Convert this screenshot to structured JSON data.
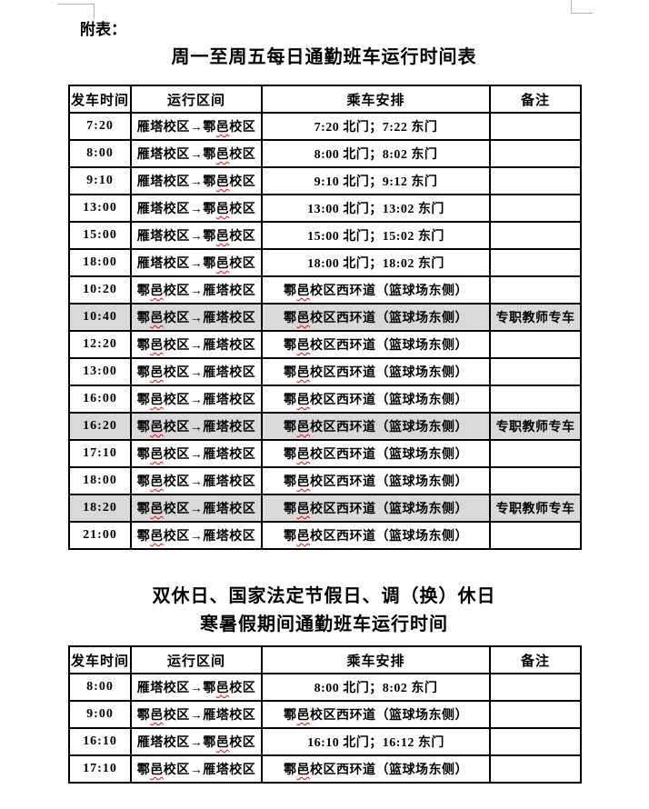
{
  "page": {
    "appendix_label": "附表："
  },
  "table1": {
    "title": "周一至周五每日通勤班车运行时间表",
    "headers": [
      "发车时间",
      "运行区间",
      "乘车安排",
      "备注"
    ],
    "rows": [
      {
        "time": "7:20",
        "route": "雁塔校区→鄠邑校区",
        "boarding": "7:20 北门；7:22 东门",
        "note": "",
        "shaded": false
      },
      {
        "time": "8:00",
        "route": "雁塔校区→鄠邑校区",
        "boarding": "8:00 北门；8:02 东门",
        "note": "",
        "shaded": false
      },
      {
        "time": "9:10",
        "route": "雁塔校区→鄠邑校区",
        "boarding": "9:10 北门；9:12 东门",
        "note": "",
        "shaded": false
      },
      {
        "time": "13:00",
        "route": "雁塔校区→鄠邑校区",
        "boarding": "13:00 北门；13:02 东门",
        "note": "",
        "shaded": false
      },
      {
        "time": "15:00",
        "route": "雁塔校区→鄠邑校区",
        "boarding": "15:00 北门；15:02 东门",
        "note": "",
        "shaded": false
      },
      {
        "time": "18:00",
        "route": "雁塔校区→鄠邑校区",
        "boarding": "18:00 北门；18:02 东门",
        "note": "",
        "shaded": false
      },
      {
        "time": "10:20",
        "route": "鄠邑校区→雁塔校区",
        "boarding": "鄠邑校区西环道（篮球场东侧）",
        "note": "",
        "shaded": false
      },
      {
        "time": "10:40",
        "route": "鄠邑校区→雁塔校区",
        "boarding": "鄠邑校区西环道（篮球场东侧）",
        "note": "专职教师专车",
        "shaded": true
      },
      {
        "time": "12:20",
        "route": "鄠邑校区→雁塔校区",
        "boarding": "鄠邑校区西环道（篮球场东侧）",
        "note": "",
        "shaded": false
      },
      {
        "time": "13:00",
        "route": "鄠邑校区→雁塔校区",
        "boarding": "鄠邑校区西环道（篮球场东侧）",
        "note": "",
        "shaded": false
      },
      {
        "time": "16:00",
        "route": "鄠邑校区→雁塔校区",
        "boarding": "鄠邑校区西环道（篮球场东侧）",
        "note": "",
        "shaded": false
      },
      {
        "time": "16:20",
        "route": "鄠邑校区→雁塔校区",
        "boarding": "鄠邑校区西环道（篮球场东侧）",
        "note": "专职教师专车",
        "shaded": true
      },
      {
        "time": "17:10",
        "route": "鄠邑校区→雁塔校区",
        "boarding": "鄠邑校区西环道（篮球场东侧）",
        "note": "",
        "shaded": false
      },
      {
        "time": "18:00",
        "route": "鄠邑校区→雁塔校区",
        "boarding": "鄠邑校区西环道（篮球场东侧）",
        "note": "",
        "shaded": false
      },
      {
        "time": "18:20",
        "route": "鄠邑校区→雁塔校区",
        "boarding": "鄠邑校区西环道（篮球场东侧）",
        "note": "专职教师专车",
        "shaded": true
      },
      {
        "time": "21:00",
        "route": "鄠邑校区→雁塔校区",
        "boarding": "鄠邑校区西环道（篮球场东侧）",
        "note": "",
        "shaded": false
      }
    ]
  },
  "table2": {
    "title_line1": "双休日、国家法定节假日、调（换）休日",
    "title_line2": "寒暑假期间通勤班车运行时间",
    "headers": [
      "发车时间",
      "运行区间",
      "乘车安排",
      "备注"
    ],
    "rows": [
      {
        "time": "8:00",
        "route": "雁塔校区→鄠邑校区",
        "boarding": "8:00 北门；8:02 东门",
        "note": "",
        "shaded": false
      },
      {
        "time": "9:00",
        "route": "鄠邑校区→雁塔校区",
        "boarding": "鄠邑校区西环道（篮球场东侧）",
        "note": "",
        "shaded": false
      },
      {
        "time": "16:10",
        "route": "雁塔校区→鄠邑校区",
        "boarding": "16:10 北门；16:12 东门",
        "note": "",
        "shaded": false
      },
      {
        "time": "17:10",
        "route": "鄠邑校区→雁塔校区",
        "boarding": "鄠邑校区西环道（篮球场东侧）",
        "note": "",
        "shaded": false
      }
    ]
  },
  "spellcheck_chars": [
    "邑"
  ],
  "styles": {
    "page_bg": "#ffffff",
    "border_color": "#000000",
    "shaded_row_bg": "#d9d9d9",
    "spellcheck_color": "#ff0000",
    "corner_mark_color": "#b5b5b5"
  }
}
